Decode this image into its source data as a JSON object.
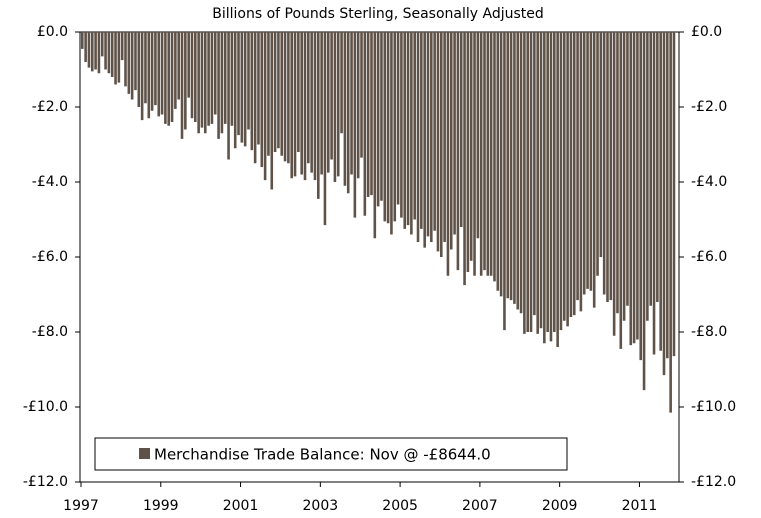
{
  "chart_data": {
    "type": "bar",
    "title": "Billions of Pounds Sterling, Seasonally Adjusted",
    "categories": [
      "1997",
      null,
      null,
      null,
      null,
      null,
      null,
      null,
      null,
      null,
      null,
      null,
      null,
      null,
      null,
      null,
      null,
      null,
      null,
      null,
      null,
      null,
      null,
      null,
      "1999",
      null,
      null,
      null,
      null,
      null,
      null,
      null,
      null,
      null,
      null,
      null,
      null,
      null,
      null,
      null,
      null,
      null,
      null,
      null,
      null,
      null,
      null,
      null,
      "2001",
      null,
      null,
      null,
      null,
      null,
      null,
      null,
      null,
      null,
      null,
      null,
      null,
      null,
      null,
      null,
      null,
      null,
      null,
      null,
      null,
      null,
      null,
      null,
      "2003",
      null,
      null,
      null,
      null,
      null,
      null,
      null,
      null,
      null,
      null,
      null,
      null,
      null,
      null,
      null,
      null,
      null,
      null,
      null,
      null,
      null,
      null,
      null,
      "2005",
      null,
      null,
      null,
      null,
      null,
      null,
      null,
      null,
      null,
      null,
      null,
      null,
      null,
      null,
      null,
      null,
      null,
      null,
      null,
      null,
      null,
      null,
      null,
      "2007",
      null,
      null,
      null,
      null,
      null,
      null,
      null,
      null,
      null,
      null,
      null,
      null,
      null,
      null,
      null,
      null,
      null,
      null,
      null,
      null,
      null,
      null,
      null,
      "2009",
      null,
      null,
      null,
      null,
      null,
      null,
      null,
      null,
      null,
      null,
      null,
      null,
      null,
      null,
      null,
      null,
      null,
      null,
      null,
      null,
      null,
      null,
      null,
      "2011",
      null,
      null,
      null,
      null,
      null,
      null,
      null,
      null,
      null,
      null
    ],
    "series": [
      {
        "name": "Merchandise Trade Balance: Nov @ -£8644.0",
        "color": "#5f5349",
        "values": [
          -0.45,
          -0.8,
          -0.95,
          -1.05,
          -1.0,
          -1.1,
          -0.65,
          -1.0,
          -1.1,
          -1.2,
          -1.4,
          -1.35,
          -0.75,
          -1.45,
          -1.65,
          -1.8,
          -1.55,
          -2.0,
          -2.35,
          -1.9,
          -2.3,
          -2.1,
          -1.95,
          -2.25,
          -2.2,
          -2.45,
          -2.5,
          -2.4,
          -2.05,
          -1.8,
          -2.85,
          -2.6,
          -1.75,
          -2.3,
          -2.4,
          -2.7,
          -2.55,
          -2.7,
          -2.5,
          -2.45,
          -2.2,
          -2.85,
          -2.7,
          -2.45,
          -3.4,
          -2.5,
          -3.1,
          -2.75,
          -2.95,
          -3.05,
          -2.6,
          -3.15,
          -3.5,
          -3.0,
          -3.6,
          -3.95,
          -3.3,
          -4.2,
          -3.2,
          -3.1,
          -3.3,
          -3.45,
          -3.5,
          -3.9,
          -3.85,
          -3.2,
          -3.8,
          -3.95,
          -3.5,
          -3.75,
          -3.95,
          -4.45,
          -3.8,
          -5.15,
          -3.75,
          -3.4,
          -4.0,
          -3.85,
          -2.7,
          -4.1,
          -4.3,
          -3.8,
          -4.95,
          -3.9,
          -3.35,
          -4.9,
          -4.4,
          -4.35,
          -5.5,
          -4.65,
          -4.5,
          -5.05,
          -5.1,
          -5.4,
          -5.05,
          -4.6,
          -4.95,
          -5.25,
          -5.15,
          -5.4,
          -5.0,
          -5.6,
          -5.25,
          -5.75,
          -5.45,
          -5.6,
          -5.3,
          -5.85,
          -6.0,
          -5.6,
          -6.5,
          -5.8,
          -5.4,
          -6.35,
          -5.2,
          -6.75,
          -6.4,
          -6.1,
          -6.5,
          -5.5,
          -6.5,
          -6.35,
          -6.5,
          -6.5,
          -6.65,
          -6.9,
          -7.05,
          -7.95,
          -7.1,
          -7.15,
          -7.25,
          -7.4,
          -7.5,
          -8.05,
          -8.0,
          -8.0,
          -7.55,
          -8.05,
          -7.9,
          -8.3,
          -8.0,
          -8.25,
          -8.0,
          -8.4,
          -7.95,
          -7.7,
          -7.85,
          -7.6,
          -7.55,
          -7.15,
          -7.45,
          -7.0,
          -6.85,
          -6.9,
          -7.35,
          -6.5,
          -6.0,
          -7.0,
          -7.2,
          -7.15,
          -8.1,
          -7.5,
          -8.45,
          -7.7,
          -7.3,
          -8.35,
          -8.3,
          -8.2,
          -8.75,
          -9.55,
          -7.7,
          -7.3,
          -8.6,
          -7.2,
          -8.5,
          -9.15,
          -8.7,
          -10.15,
          -8.644
        ]
      }
    ],
    "ylim": [
      -12,
      0
    ],
    "yticks": [
      {
        "value": 0,
        "label": "£0.0"
      },
      {
        "value": -2,
        "label": "-£2.0"
      },
      {
        "value": -4,
        "label": "-£4.0"
      },
      {
        "value": -6,
        "label": "-£6.0"
      },
      {
        "value": -8,
        "label": "-£8.0"
      },
      {
        "value": -10,
        "label": "-£10.0"
      },
      {
        "value": -12,
        "label": "-£12.0"
      }
    ],
    "y2lim": [
      -12,
      0
    ],
    "y2ticks": [
      {
        "value": 0,
        "label": "£0.0"
      },
      {
        "value": -2,
        "label": "-£2.0"
      },
      {
        "value": -4,
        "label": "-£4.0"
      },
      {
        "value": -6,
        "label": "-£6.0"
      },
      {
        "value": -8,
        "label": "-£8.0"
      },
      {
        "value": -10,
        "label": "-£10.0"
      },
      {
        "value": -12,
        "label": "-£12.0"
      }
    ],
    "legend": "lower left"
  }
}
